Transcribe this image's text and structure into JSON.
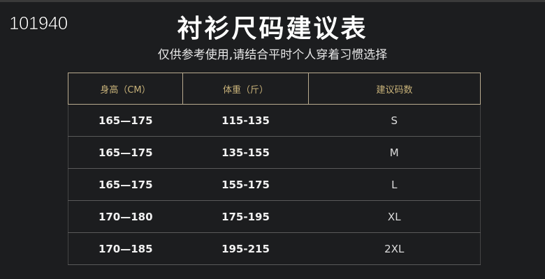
{
  "overlay_text": "101940",
  "title": "衬衫尺码建议表",
  "subtitle": "仅供参考使用,请结合平时个人穿着习惯选择",
  "table": {
    "headers": [
      "身高（CM）",
      "体重（斤）",
      "建议码数"
    ],
    "rows": [
      [
        "165—175",
        "115-135",
        "S"
      ],
      [
        "165—175",
        "135-155",
        "M"
      ],
      [
        "165—175",
        "155-175",
        "L"
      ],
      [
        "170—180",
        "175-195",
        "XL"
      ],
      [
        "170—185",
        "195-215",
        "2XL"
      ]
    ]
  },
  "colors": {
    "background": "#1c1d1f",
    "header_text": "#c9b37a",
    "frame": "#b9ab8f"
  }
}
